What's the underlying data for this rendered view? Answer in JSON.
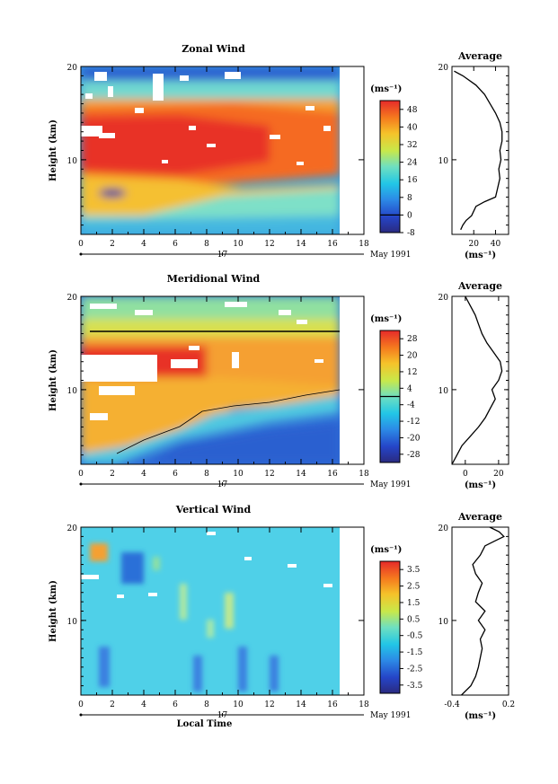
{
  "chart_data": [
    {
      "type": "heatmap",
      "title": "Zonal Wind",
      "ylabel": "Height (km)",
      "ylim": [
        2,
        20
      ],
      "xlim": [
        0,
        18
      ],
      "x_ticks": [
        "0",
        "2",
        "4",
        "6",
        "8",
        "10",
        "12",
        "14",
        "16",
        "18"
      ],
      "y_ticks": [
        "10",
        "20"
      ],
      "date_marker": "17",
      "date_label": "May 1991",
      "colorbar": {
        "unit": "(ms⁻¹)",
        "ticks": [
          "48",
          "40",
          "32",
          "24",
          "16",
          "8",
          "0",
          "-8"
        ],
        "range": [
          -8,
          52
        ]
      },
      "average": {
        "title": "Average",
        "x_ticks": [
          "20",
          "40"
        ],
        "xlabel": "(ms⁻¹)",
        "xlim": [
          0,
          52
        ],
        "y_ticks": [
          "10",
          "20"
        ],
        "profile": [
          [
            2.5,
            8
          ],
          [
            3,
            10
          ],
          [
            3.5,
            13
          ],
          [
            4,
            18
          ],
          [
            5,
            22
          ],
          [
            5.5,
            30
          ],
          [
            6,
            40
          ],
          [
            7,
            42
          ],
          [
            8,
            44
          ],
          [
            9,
            43
          ],
          [
            10,
            45
          ],
          [
            11,
            44
          ],
          [
            12,
            46
          ],
          [
            13,
            46
          ],
          [
            14,
            44
          ],
          [
            15,
            40
          ],
          [
            16,
            35
          ],
          [
            17,
            30
          ],
          [
            18,
            22
          ],
          [
            19,
            10
          ],
          [
            19.5,
            2
          ]
        ]
      }
    },
    {
      "type": "heatmap",
      "title": "Meridional Wind",
      "ylabel": "Height (km)",
      "ylim": [
        2,
        20
      ],
      "xlim": [
        0,
        18
      ],
      "x_ticks": [
        "0",
        "2",
        "4",
        "6",
        "8",
        "10",
        "12",
        "14",
        "16",
        "18"
      ],
      "y_ticks": [
        "10",
        "20"
      ],
      "date_marker": "17",
      "date_label": "May 1991",
      "colorbar": {
        "unit": "(ms⁻¹)",
        "ticks": [
          "28",
          "20",
          "12",
          "4",
          "-4",
          "-12",
          "-20",
          "-28"
        ],
        "range": [
          -32,
          32
        ]
      },
      "average": {
        "title": "Average",
        "x_ticks": [
          "0",
          "20"
        ],
        "xlabel": "(ms⁻¹)",
        "xlim": [
          -8,
          26
        ],
        "y_ticks": [
          "10",
          "20"
        ],
        "profile": [
          [
            2,
            -8
          ],
          [
            3,
            -5
          ],
          [
            4,
            -2
          ],
          [
            5,
            3
          ],
          [
            6,
            8
          ],
          [
            7,
            12
          ],
          [
            8,
            15
          ],
          [
            9,
            18
          ],
          [
            10,
            16
          ],
          [
            11,
            20
          ],
          [
            12,
            22
          ],
          [
            13,
            21
          ],
          [
            14,
            17
          ],
          [
            15,
            13
          ],
          [
            16,
            10
          ],
          [
            17,
            8
          ],
          [
            18,
            6
          ],
          [
            19,
            3
          ],
          [
            20,
            0
          ]
        ]
      }
    },
    {
      "type": "heatmap",
      "title": "Vertical Wind",
      "ylabel": "Height (km)",
      "xlabel": "Local Time",
      "ylim": [
        2,
        20
      ],
      "xlim": [
        0,
        18
      ],
      "x_ticks": [
        "0",
        "2",
        "4",
        "6",
        "8",
        "10",
        "12",
        "14",
        "16",
        "18"
      ],
      "y_ticks": [
        "10",
        "20"
      ],
      "date_marker": "17",
      "date_label": "May 1991",
      "colorbar": {
        "unit": "(ms⁻¹)",
        "ticks": [
          "3.5",
          "2.5",
          "1.5",
          "0.5",
          "-0.5",
          "-1.5",
          "-2.5",
          "-3.5"
        ],
        "range": [
          -4,
          4
        ]
      },
      "average": {
        "title": "Average",
        "x_ticks": [
          "-0.4",
          "0.2"
        ],
        "xlabel": "(ms⁻¹)",
        "xlim": [
          -0.4,
          0.2
        ],
        "y_ticks": [
          "10",
          "20"
        ],
        "profile": [
          [
            2,
            -0.3
          ],
          [
            3,
            -0.2
          ],
          [
            4,
            -0.15
          ],
          [
            5,
            -0.12
          ],
          [
            6,
            -0.1
          ],
          [
            7,
            -0.08
          ],
          [
            8,
            -0.1
          ],
          [
            9,
            -0.05
          ],
          [
            10,
            -0.12
          ],
          [
            11,
            -0.05
          ],
          [
            12,
            -0.15
          ],
          [
            13,
            -0.12
          ],
          [
            14,
            -0.08
          ],
          [
            15,
            -0.15
          ],
          [
            16,
            -0.18
          ],
          [
            17,
            -0.1
          ],
          [
            18,
            -0.05
          ],
          [
            18.5,
            0.05
          ],
          [
            19,
            0.15
          ],
          [
            19.5,
            0.1
          ],
          [
            20,
            0.0
          ]
        ]
      }
    }
  ]
}
